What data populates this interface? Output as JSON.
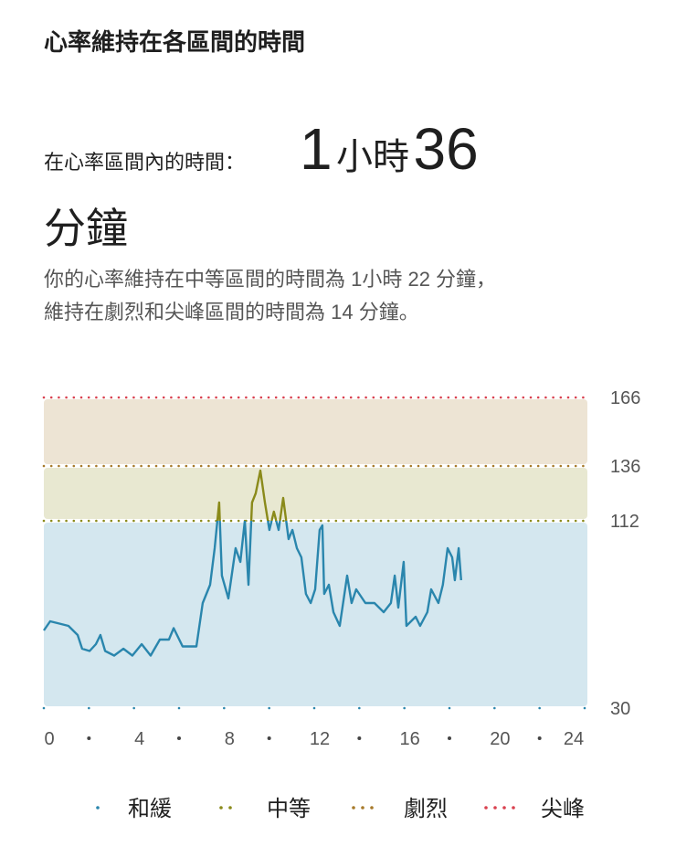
{
  "header": {
    "title": "心率維持在各區間的時間"
  },
  "summary": {
    "label": "在心率區間內的時間：",
    "hours": "1",
    "hours_unit": "小時",
    "minutes": "36",
    "minutes_unit": "分鐘"
  },
  "description": [
    "你的心率維持在中等區間的時間為 1小時 22 分鐘，",
    "維持在劇烈和尖峰區間的時間為 14 分鐘。"
  ],
  "chart_data": {
    "type": "line",
    "x": [
      0,
      0.28,
      0.69,
      1.09,
      1.5,
      1.7,
      2.03,
      2.31,
      2.51,
      2.72,
      3.12,
      3.53,
      3.93,
      4.34,
      4.74,
      5.15,
      5.55,
      5.76,
      6.16,
      6.77,
      7.05,
      7.38,
      7.58,
      7.78,
      7.9,
      8.19,
      8.51,
      8.72,
      8.92,
      9.08,
      9.24,
      9.4,
      9.61,
      9.81,
      10.01,
      10.21,
      10.42,
      10.62,
      10.86,
      11.03,
      11.23,
      11.43,
      11.63,
      11.84,
      12.04,
      12.24,
      12.36,
      12.44,
      12.65,
      12.85,
      13.13,
      13.46,
      13.66,
      13.86,
      14.27,
      14.67,
      15.08,
      15.4,
      15.57,
      15.73,
      15.97,
      16.09,
      16.5,
      16.7,
      17.02,
      17.19,
      17.51,
      17.71,
      17.92,
      18.12,
      18.24,
      18.41,
      18.52
    ],
    "values": [
      64,
      68,
      67,
      66,
      62,
      56,
      55,
      58,
      62,
      55,
      53,
      56,
      53,
      58,
      53,
      60,
      60,
      65,
      57,
      57,
      76,
      84,
      100,
      120,
      88,
      78,
      100,
      94,
      112,
      84,
      120,
      124,
      134,
      120,
      108,
      116,
      108,
      122,
      104,
      108,
      100,
      96,
      80,
      76,
      82,
      108,
      110,
      80,
      84,
      72,
      66,
      88,
      76,
      82,
      76,
      76,
      72,
      76,
      88,
      74,
      94,
      66,
      70,
      66,
      72,
      82,
      76,
      84,
      100,
      96,
      86,
      100,
      86
    ],
    "xlim": [
      0,
      24
    ],
    "xticks": [
      0,
      4,
      8,
      12,
      16,
      20,
      24
    ],
    "ylim": [
      30,
      166
    ],
    "yticks": [
      30,
      112,
      136,
      166
    ],
    "zones": [
      {
        "name": "和緩",
        "color": "#2a86ad",
        "min": 30,
        "max": 112
      },
      {
        "name": "中等",
        "color": "#8a8a1a",
        "min": 112,
        "max": 136
      },
      {
        "name": "劇烈",
        "color": "#a77a2a",
        "min": 136,
        "max": 166
      },
      {
        "name": "尖峰",
        "color": "#d9414f",
        "min": 166
      }
    ]
  }
}
